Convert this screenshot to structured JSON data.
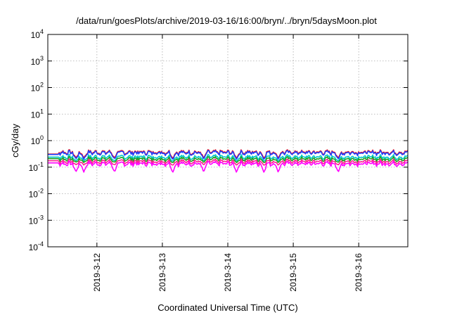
{
  "chart_data": {
    "type": "line",
    "title": "/data/run/goesPlots/archive/2019-03-16/16:00/bryn/../bryn/5daysMoon.plot",
    "xlabel": "Coordinated Universal Time (UTC)",
    "ylabel": "cGy/day",
    "yscale": "log",
    "ylim": [
      0.0001,
      10000
    ],
    "y_ticks": [
      {
        "value": 0.0001,
        "base": "10",
        "exp": "-4"
      },
      {
        "value": 0.001,
        "base": "10",
        "exp": "-3"
      },
      {
        "value": 0.01,
        "base": "10",
        "exp": "-2"
      },
      {
        "value": 0.1,
        "base": "10",
        "exp": "-1"
      },
      {
        "value": 1,
        "base": "10",
        "exp": "0"
      },
      {
        "value": 10,
        "base": "10",
        "exp": "1"
      },
      {
        "value": 100,
        "base": "10",
        "exp": "2"
      },
      {
        "value": 1000,
        "base": "10",
        "exp": "3"
      },
      {
        "value": 10000,
        "base": "10",
        "exp": "4"
      }
    ],
    "xlim": [
      "2019-03-11 06:00",
      "2019-03-16 18:00"
    ],
    "x_ticks": [
      "2019-3-12",
      "2019-3-13",
      "2019-3-14",
      "2019-3-15",
      "2019-3-16"
    ],
    "grid": true,
    "legend": "none",
    "series": [
      {
        "color": "#ff0000",
        "start": 0.31,
        "level": 0.38,
        "dip_to": 0.22
      },
      {
        "color": "#1f3fff",
        "start": 0.3,
        "level": 0.36,
        "dip_to": 0.2
      },
      {
        "color": "#00c8c8",
        "start": 0.24,
        "level": 0.25,
        "dip_to": 0.17
      },
      {
        "color": "#20a020",
        "start": 0.21,
        "level": 0.21,
        "dip_to": 0.15
      },
      {
        "color": "#ff2090",
        "start": 0.175,
        "level": 0.17,
        "dip_to": 0.12
      },
      {
        "color": "#ff00ff",
        "start": 0.145,
        "level": 0.14,
        "dip_to": 0.065
      }
    ],
    "dips_days": [
      0.43,
      0.55,
      1.02,
      1.91,
      2.38,
      2.88,
      3.3,
      3.52,
      4.44
    ]
  }
}
